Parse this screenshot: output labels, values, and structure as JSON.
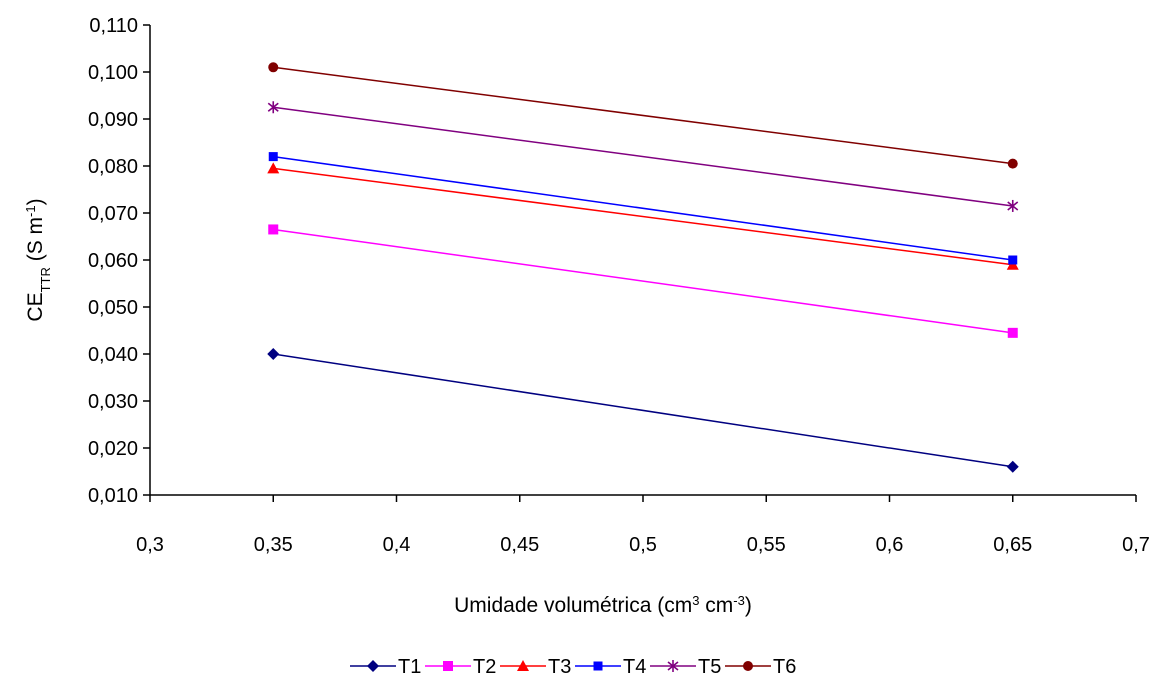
{
  "chart_data": {
    "type": "line",
    "xlabel_parts": [
      "Umidade volumétrica (cm",
      "3",
      " cm",
      "-3",
      ")"
    ],
    "ylabel_parts": [
      "CE",
      "TTR",
      " (S m",
      "-1",
      ")"
    ],
    "xlim": [
      0.3,
      0.7
    ],
    "ylim": [
      0.01,
      0.11
    ],
    "x_ticks": [
      0.3,
      0.35,
      0.4,
      0.45,
      0.5,
      0.55,
      0.6,
      0.65,
      0.7
    ],
    "x_tick_labels": [
      "0,3",
      "0,35",
      "0,4",
      "0,45",
      "0,5",
      "0,55",
      "0,6",
      "0,65",
      "0,7"
    ],
    "y_ticks": [
      0.01,
      0.02,
      0.03,
      0.04,
      0.05,
      0.06,
      0.07,
      0.08,
      0.09,
      0.1,
      0.11
    ],
    "y_tick_labels": [
      "0,010",
      "0,020",
      "0,030",
      "0,040",
      "0,050",
      "0,060",
      "0,070",
      "0,080",
      "0,090",
      "0,100",
      "0,110"
    ],
    "grid": false,
    "legend_position": "bottom",
    "series": [
      {
        "name": "T1",
        "color": "#000080",
        "marker": "diamond",
        "x": [
          0.35,
          0.65
        ],
        "y": [
          0.04,
          0.016
        ]
      },
      {
        "name": "T2",
        "color": "#FF00FF",
        "marker": "square",
        "x": [
          0.35,
          0.65
        ],
        "y": [
          0.0665,
          0.0445
        ]
      },
      {
        "name": "T3",
        "color": "#FF0000",
        "marker": "triangle",
        "x": [
          0.35,
          0.65
        ],
        "y": [
          0.0795,
          0.059
        ]
      },
      {
        "name": "T4",
        "color": "#0000FF",
        "marker": "square-small",
        "x": [
          0.35,
          0.65
        ],
        "y": [
          0.082,
          0.06
        ]
      },
      {
        "name": "T5",
        "color": "#800080",
        "marker": "star",
        "x": [
          0.35,
          0.65
        ],
        "y": [
          0.0925,
          0.0715
        ]
      },
      {
        "name": "T6",
        "color": "#800000",
        "marker": "circle",
        "x": [
          0.35,
          0.65
        ],
        "y": [
          0.101,
          0.0805
        ]
      }
    ]
  }
}
